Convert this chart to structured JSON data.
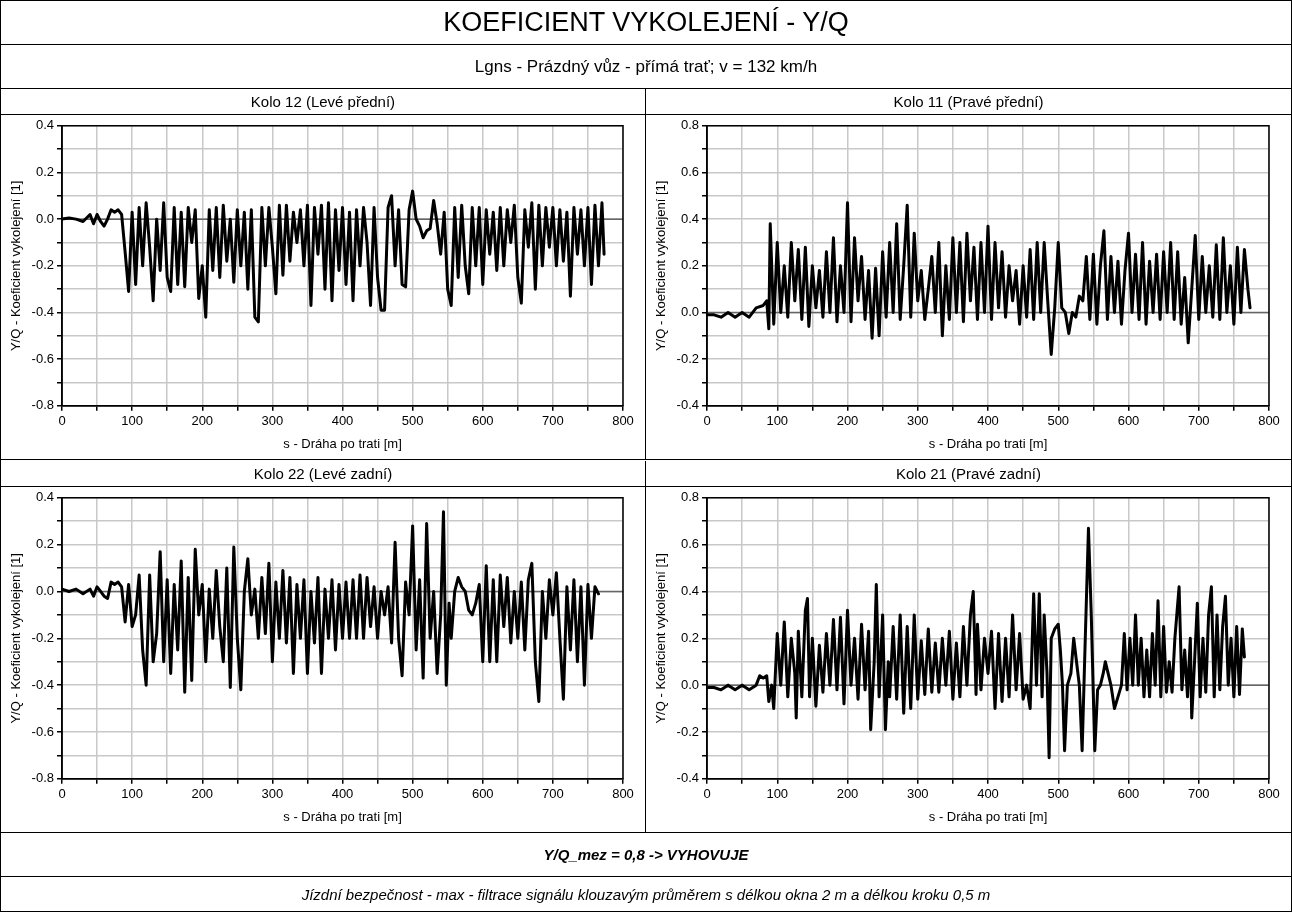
{
  "chart_data": [
    {
      "type": "other",
      "title": "KOEFICIENT VYKOLEJENÍ - Y/Q",
      "subtitle": "Lgns - Prázdný vůz - přímá trať; v = 132 km/h",
      "annotations": [
        "Y/Q_mez = 0,8 -> VYHOVUJE",
        "Jízdní bezpečnost - max - filtrace signálu klouzavým průměrem s délkou okna 2 m a délkou kroku 0,5 m"
      ]
    },
    {
      "type": "line",
      "title": "Kolo 12 (Levé přední)",
      "xlabel": "s - Dráha po trati [m]",
      "ylabel": "Y/Q - Koeficient vykolejení [1]",
      "color": "#000000",
      "marker": "none",
      "line_style": "solid",
      "grid": true,
      "x": [
        0,
        10,
        20,
        30,
        40,
        45,
        50,
        55,
        60,
        65,
        70,
        75,
        80,
        85,
        90,
        95,
        100,
        105,
        110,
        115,
        120,
        125,
        130,
        135,
        140,
        145,
        150,
        155,
        160,
        165,
        170,
        175,
        180,
        185,
        190,
        195,
        200,
        205,
        210,
        215,
        220,
        225,
        230,
        235,
        240,
        245,
        250,
        255,
        260,
        265,
        270,
        275,
        280,
        285,
        290,
        295,
        300,
        305,
        310,
        315,
        320,
        325,
        330,
        335,
        340,
        345,
        350,
        355,
        360,
        365,
        370,
        375,
        380,
        385,
        390,
        395,
        400,
        405,
        410,
        415,
        420,
        425,
        430,
        435,
        440,
        445,
        450,
        455,
        460,
        465,
        470,
        475,
        480,
        485,
        490,
        495,
        500,
        505,
        510,
        515,
        520,
        525,
        530,
        535,
        540,
        545,
        550,
        555,
        560,
        565,
        570,
        575,
        580,
        585,
        590,
        595,
        600,
        605,
        610,
        615,
        620,
        625,
        630,
        635,
        640,
        645,
        650,
        655,
        660,
        665,
        670,
        675,
        680,
        685,
        690,
        695,
        700,
        705,
        710,
        715,
        720,
        725,
        730,
        735,
        740,
        745,
        750,
        755,
        760,
        765,
        770,
        773
      ],
      "values": [
        0,
        0.005,
        0,
        -0.01,
        0.02,
        -0.02,
        0.02,
        -0.01,
        -0.03,
        0,
        0.04,
        0.03,
        0.04,
        0.02,
        -0.14,
        -0.31,
        0.03,
        -0.28,
        0.05,
        -0.2,
        0.07,
        -0.12,
        -0.35,
        0,
        -0.22,
        0.07,
        -0.25,
        -0.31,
        0.05,
        -0.28,
        0.03,
        -0.29,
        0.05,
        -0.1,
        0.04,
        -0.34,
        -0.2,
        -0.42,
        0.04,
        -0.22,
        0.05,
        -0.25,
        0.06,
        -0.18,
        0,
        -0.27,
        0.04,
        -0.2,
        0.03,
        -0.3,
        0.04,
        -0.42,
        -0.44,
        0.05,
        -0.2,
        0.05,
        -0.12,
        -0.32,
        0.06,
        -0.24,
        0.06,
        -0.18,
        0.03,
        -0.1,
        0.04,
        -0.2,
        0.06,
        -0.37,
        0.05,
        -0.15,
        0.06,
        -0.3,
        0.07,
        -0.35,
        0.04,
        -0.22,
        0.05,
        -0.28,
        0.03,
        -0.35,
        0.04,
        -0.2,
        0.05,
        -0.1,
        -0.37,
        0.05,
        -0.25,
        -0.39,
        -0.39,
        0.05,
        0.1,
        -0.2,
        0.04,
        -0.28,
        -0.29,
        0.04,
        0.12,
        0,
        -0.03,
        -0.08,
        -0.05,
        -0.04,
        0.08,
        -0.02,
        -0.15,
        0.03,
        -0.3,
        -0.37,
        0.05,
        -0.25,
        0.06,
        -0.2,
        -0.32,
        0.05,
        -0.2,
        0.05,
        -0.28,
        0.04,
        -0.15,
        0.03,
        -0.22,
        0.05,
        -0.2,
        0.04,
        -0.1,
        0.06,
        -0.25,
        -0.36,
        0.04,
        -0.12,
        0.07,
        -0.3,
        0.06,
        -0.2,
        0.05,
        -0.12,
        0.05,
        -0.2,
        0.04,
        -0.18,
        0.03,
        -0.33,
        0.05,
        -0.15,
        0.04,
        -0.2,
        0.05,
        -0.28,
        0.06,
        -0.2,
        0.07,
        -0.15
      ],
      "xlim": [
        0,
        800
      ],
      "xticks": [
        0,
        {
          "value": 50,
          "label": null
        },
        100,
        {
          "value": 150,
          "label": null
        },
        200,
        {
          "value": 250,
          "label": null
        },
        300,
        {
          "value": 350,
          "label": null
        },
        400,
        {
          "value": 450,
          "label": null
        },
        500,
        {
          "value": 550,
          "label": null
        },
        600,
        {
          "value": 650,
          "label": null
        },
        700,
        {
          "value": 750,
          "label": null
        },
        800
      ],
      "ylim": [
        -0.8,
        0.4
      ],
      "yticks": [
        -0.8,
        {
          "value": -0.7,
          "label": null
        },
        -0.6,
        {
          "value": -0.5,
          "label": null
        },
        -0.4,
        {
          "value": -0.3,
          "label": null
        },
        -0.2,
        {
          "value": -0.1,
          "label": null
        },
        {
          "value": 0,
          "label": "0.0"
        },
        {
          "value": 0.1,
          "label": null
        },
        0.2,
        {
          "value": 0.3,
          "label": null
        },
        0.4
      ],
      "ref_lines": [
        {
          "axis": "y",
          "value": 0,
          "color": "#666666"
        }
      ]
    },
    {
      "type": "line",
      "title": "Kolo 11 (Pravé přední)",
      "xlabel": "s - Dráha po trati [m]",
      "ylabel": "Y/Q - Koeficient vykolejení [1]",
      "color": "#000000",
      "marker": "none",
      "line_style": "solid",
      "grid": true,
      "x": [
        0,
        10,
        20,
        30,
        40,
        50,
        60,
        70,
        80,
        85,
        88,
        90,
        95,
        100,
        105,
        110,
        115,
        120,
        125,
        130,
        135,
        140,
        145,
        150,
        155,
        160,
        165,
        170,
        175,
        180,
        185,
        190,
        195,
        200,
        205,
        210,
        215,
        220,
        225,
        230,
        235,
        240,
        245,
        250,
        255,
        260,
        265,
        270,
        275,
        280,
        285,
        290,
        295,
        300,
        305,
        310,
        315,
        320,
        325,
        330,
        335,
        340,
        345,
        350,
        355,
        360,
        365,
        370,
        375,
        380,
        385,
        390,
        395,
        400,
        405,
        410,
        415,
        420,
        425,
        430,
        435,
        440,
        445,
        450,
        455,
        460,
        465,
        470,
        475,
        480,
        485,
        490,
        495,
        500,
        505,
        510,
        515,
        520,
        525,
        530,
        535,
        540,
        545,
        550,
        555,
        560,
        565,
        570,
        575,
        580,
        585,
        590,
        595,
        600,
        605,
        610,
        615,
        620,
        625,
        630,
        635,
        640,
        645,
        650,
        655,
        660,
        665,
        670,
        675,
        680,
        685,
        690,
        695,
        700,
        705,
        710,
        715,
        720,
        725,
        730,
        735,
        740,
        745,
        750,
        755,
        760,
        765,
        770,
        773
      ],
      "values": [
        -0.01,
        -0.01,
        -0.02,
        0,
        -0.02,
        0,
        -0.02,
        0.02,
        0.03,
        0.05,
        -0.07,
        0.38,
        -0.05,
        0.3,
        0,
        0.2,
        -0.02,
        0.3,
        0.05,
        0.27,
        -0.03,
        0.28,
        -0.06,
        0.2,
        0.02,
        0.18,
        -0.02,
        0.26,
        0,
        0.32,
        -0.04,
        0.2,
        0,
        0.47,
        -0.04,
        0.32,
        0.05,
        0.24,
        -0.03,
        0.18,
        -0.11,
        0.19,
        -0.1,
        0.26,
        -0.02,
        0.3,
        0,
        0.38,
        -0.03,
        0.2,
        0.46,
        -0.02,
        0.34,
        0.05,
        0.18,
        -0.03,
        0.1,
        0.24,
        0,
        0.3,
        -0.1,
        0.2,
        -0.03,
        0.32,
        0,
        0.3,
        -0.04,
        0.34,
        0.05,
        0.28,
        -0.03,
        0.3,
        0,
        0.37,
        -0.03,
        0.3,
        0.02,
        0.26,
        -0.02,
        0.2,
        0.05,
        0.18,
        -0.05,
        0.2,
        -0.02,
        0.27,
        -0.03,
        0.3,
        0,
        0.3,
        0.05,
        -0.18,
        0.02,
        0.3,
        0.02,
        0,
        -0.09,
        0,
        -0.02,
        0.07,
        0.05,
        0.24,
        -0.03,
        0.25,
        -0.05,
        0.2,
        0.35,
        -0.03,
        0.24,
        0,
        0.22,
        -0.05,
        0.18,
        0.34,
        0,
        0.25,
        -0.03,
        0.3,
        -0.05,
        0.22,
        0,
        0.25,
        -0.03,
        0.26,
        0,
        0.3,
        -0.03,
        0.26,
        -0.05,
        0.15,
        -0.13,
        0.1,
        0.33,
        -0.03,
        0.24,
        0,
        0.2,
        -0.02,
        0.29,
        -0.03,
        0.32,
        0,
        0.2,
        -0.05,
        0.28,
        0,
        0.27,
        0.1,
        0.02
      ],
      "xlim": [
        0,
        800
      ],
      "xticks": [
        0,
        {
          "value": 50,
          "label": null
        },
        100,
        {
          "value": 150,
          "label": null
        },
        200,
        {
          "value": 250,
          "label": null
        },
        300,
        {
          "value": 350,
          "label": null
        },
        400,
        {
          "value": 450,
          "label": null
        },
        500,
        {
          "value": 550,
          "label": null
        },
        600,
        {
          "value": 650,
          "label": null
        },
        700,
        {
          "value": 750,
          "label": null
        },
        800
      ],
      "ylim": [
        -0.4,
        0.8
      ],
      "yticks": [
        -0.4,
        {
          "value": -0.3,
          "label": null
        },
        -0.2,
        {
          "value": -0.1,
          "label": null
        },
        {
          "value": 0,
          "label": "0.0"
        },
        {
          "value": 0.1,
          "label": null
        },
        0.2,
        {
          "value": 0.3,
          "label": null
        },
        0.4,
        {
          "value": 0.5,
          "label": null
        },
        0.6,
        {
          "value": 0.7,
          "label": null
        },
        0.8
      ],
      "ref_lines": [
        {
          "axis": "y",
          "value": 0,
          "color": "#666666"
        }
      ]
    },
    {
      "type": "line",
      "title": "Kolo 22 (Levé zadní)",
      "xlabel": "s - Dráha po trati [m]",
      "ylabel": "Y/Q - Koeficient vykolejení [1]",
      "color": "#000000",
      "marker": "none",
      "line_style": "solid",
      "grid": true,
      "x": [
        0,
        10,
        20,
        30,
        40,
        45,
        50,
        55,
        60,
        65,
        70,
        75,
        80,
        85,
        90,
        95,
        100,
        105,
        110,
        115,
        120,
        125,
        130,
        135,
        140,
        145,
        150,
        155,
        160,
        165,
        170,
        175,
        180,
        185,
        190,
        195,
        200,
        205,
        210,
        215,
        220,
        225,
        230,
        235,
        240,
        245,
        250,
        255,
        260,
        265,
        270,
        275,
        280,
        285,
        290,
        295,
        300,
        305,
        310,
        315,
        320,
        325,
        330,
        335,
        340,
        345,
        350,
        355,
        360,
        365,
        370,
        375,
        380,
        385,
        390,
        395,
        400,
        405,
        410,
        415,
        420,
        425,
        430,
        435,
        440,
        445,
        450,
        455,
        460,
        465,
        470,
        475,
        480,
        485,
        490,
        495,
        500,
        505,
        510,
        515,
        520,
        525,
        530,
        535,
        540,
        544,
        548,
        552,
        555,
        560,
        565,
        570,
        575,
        580,
        585,
        590,
        595,
        600,
        605,
        610,
        615,
        620,
        625,
        630,
        635,
        640,
        645,
        650,
        655,
        660,
        665,
        670,
        675,
        680,
        685,
        690,
        695,
        700,
        705,
        710,
        715,
        720,
        725,
        730,
        735,
        740,
        745,
        750,
        755,
        760,
        765
      ],
      "values": [
        0.01,
        0,
        0.01,
        -0.01,
        0.01,
        -0.02,
        0.02,
        0,
        -0.02,
        -0.03,
        0.04,
        0.03,
        0.04,
        0.02,
        -0.13,
        0.03,
        -0.15,
        -0.1,
        0.07,
        -0.25,
        -0.4,
        0.07,
        -0.3,
        -0.18,
        0.17,
        -0.3,
        0.05,
        -0.35,
        0.03,
        -0.25,
        0.13,
        -0.43,
        0.06,
        -0.38,
        0.18,
        -0.1,
        0.03,
        -0.3,
        0.01,
        -0.2,
        0.09,
        -0.15,
        -0.3,
        0.1,
        -0.41,
        0.19,
        -0.2,
        -0.42,
        0,
        0.14,
        -0.1,
        0.01,
        -0.2,
        0.06,
        -0.18,
        0.12,
        -0.3,
        0.04,
        -0.2,
        0.09,
        -0.22,
        0.06,
        -0.35,
        0.03,
        -0.2,
        0.05,
        -0.35,
        0,
        -0.22,
        0.06,
        -0.35,
        0.01,
        -0.2,
        0.05,
        -0.25,
        0.03,
        -0.2,
        0.04,
        -0.2,
        0.05,
        -0.2,
        0.07,
        -0.2,
        0.06,
        -0.15,
        0.02,
        -0.2,
        0,
        -0.1,
        0.02,
        -0.22,
        0.21,
        -0.2,
        -0.36,
        0.04,
        -0.1,
        0.28,
        -0.25,
        0.05,
        -0.37,
        0.29,
        -0.2,
        0,
        -0.35,
        -0.1,
        0.34,
        -0.4,
        -0.05,
        -0.2,
        0,
        0.06,
        0.02,
        0,
        -0.08,
        -0.1,
        -0.05,
        0.03,
        -0.3,
        0.11,
        -0.3,
        0.05,
        -0.3,
        0.07,
        -0.15,
        0.06,
        -0.22,
        0,
        -0.2,
        0.04,
        -0.25,
        0.05,
        0.12,
        -0.3,
        -0.47,
        0,
        -0.2,
        0.05,
        -0.1,
        0.08,
        -0.2,
        -0.46,
        0.02,
        -0.25,
        0.05,
        -0.3,
        0.02,
        -0.4,
        0.03,
        -0.2,
        0.02,
        -0.01
      ],
      "xlim": [
        0,
        800
      ],
      "xticks": [
        0,
        {
          "value": 50,
          "label": null
        },
        100,
        {
          "value": 150,
          "label": null
        },
        200,
        {
          "value": 250,
          "label": null
        },
        300,
        {
          "value": 350,
          "label": null
        },
        400,
        {
          "value": 450,
          "label": null
        },
        500,
        {
          "value": 550,
          "label": null
        },
        600,
        {
          "value": 650,
          "label": null
        },
        700,
        {
          "value": 750,
          "label": null
        },
        800
      ],
      "ylim": [
        -0.8,
        0.4
      ],
      "yticks": [
        -0.8,
        {
          "value": -0.7,
          "label": null
        },
        -0.6,
        {
          "value": -0.5,
          "label": null
        },
        -0.4,
        {
          "value": -0.3,
          "label": null
        },
        -0.2,
        {
          "value": -0.1,
          "label": null
        },
        {
          "value": 0,
          "label": "0.0"
        },
        {
          "value": 0.1,
          "label": null
        },
        0.2,
        {
          "value": 0.3,
          "label": null
        },
        0.4
      ],
      "ref_lines": [
        {
          "axis": "y",
          "value": 0,
          "color": "#666666"
        }
      ]
    },
    {
      "type": "line",
      "title": "Kolo 21 (Pravé zadní)",
      "xlabel": "s - Dráha po trati [m]",
      "ylabel": "Y/Q - Koeficient vykolejení [1]",
      "color": "#000000",
      "marker": "none",
      "line_style": "solid",
      "grid": true,
      "x": [
        0,
        10,
        20,
        30,
        40,
        50,
        60,
        70,
        75,
        80,
        85,
        88,
        92,
        95,
        100,
        105,
        110,
        115,
        120,
        125,
        127,
        130,
        135,
        140,
        143,
        146,
        150,
        155,
        160,
        165,
        170,
        175,
        180,
        185,
        190,
        195,
        200,
        205,
        210,
        215,
        220,
        225,
        230,
        233,
        238,
        241,
        245,
        250,
        254,
        258,
        260,
        265,
        270,
        275,
        280,
        285,
        290,
        295,
        300,
        305,
        310,
        315,
        320,
        325,
        330,
        335,
        340,
        345,
        350,
        355,
        360,
        365,
        370,
        375,
        379,
        383,
        385,
        390,
        395,
        400,
        405,
        410,
        415,
        420,
        425,
        430,
        435,
        440,
        445,
        450,
        455,
        460,
        465,
        469,
        473,
        477,
        480,
        484,
        487,
        490,
        495,
        500,
        503,
        506,
        509,
        513,
        518,
        522,
        526,
        530,
        534,
        538,
        543,
        547,
        552,
        556,
        560,
        564,
        567,
        571,
        575,
        580,
        585,
        590,
        594,
        598,
        602,
        606,
        610,
        614,
        618,
        622,
        626,
        630,
        634,
        638,
        642,
        646,
        650,
        654,
        658,
        662,
        666,
        672,
        676,
        680,
        684,
        688,
        690,
        694,
        698,
        702,
        706,
        710,
        714,
        718,
        722,
        726,
        730,
        734,
        738,
        742,
        746,
        750,
        754,
        758,
        762,
        765
      ],
      "values": [
        -0.01,
        -0.01,
        -0.02,
        0,
        -0.02,
        0,
        -0.02,
        0,
        0.04,
        0.03,
        0.04,
        -0.07,
        0,
        -0.1,
        0.22,
        0,
        0.27,
        -0.05,
        0.2,
        0.05,
        -0.14,
        0.23,
        -0.05,
        0.32,
        0.37,
        -0.05,
        0.2,
        -0.09,
        0.17,
        -0.03,
        0.22,
        0,
        0.28,
        -0.02,
        0.29,
        -0.08,
        0.32,
        0,
        0.2,
        -0.06,
        0.26,
        -0.02,
        0.23,
        -0.19,
        0.1,
        0.43,
        -0.05,
        0.3,
        -0.19,
        0.1,
        -0.05,
        0.25,
        -0.06,
        0.3,
        -0.12,
        0.25,
        -0.1,
        0.3,
        -0.06,
        0.19,
        -0.04,
        0.24,
        -0.03,
        0.18,
        -0.03,
        0.2,
        0,
        0.23,
        -0.06,
        0.18,
        -0.05,
        0.25,
        0,
        0.3,
        0.4,
        -0.04,
        0.26,
        -0.02,
        0.2,
        0.05,
        0.23,
        -0.1,
        0.22,
        -0.07,
        0.2,
        -0.05,
        0.3,
        -0.02,
        0.22,
        -0.06,
        0,
        -0.1,
        0.39,
        0,
        0.39,
        -0.05,
        0.3,
        0.05,
        -0.31,
        0.2,
        0.24,
        0.26,
        0.15,
        0,
        -0.28,
        0,
        0.05,
        0.2,
        0.1,
        0,
        -0.28,
        0.15,
        0.67,
        0.3,
        -0.28,
        -0.02,
        0,
        0.05,
        0.1,
        0.05,
        0,
        -0.1,
        -0.05,
        0,
        0.22,
        -0.02,
        0.2,
        0,
        0.3,
        0,
        0.2,
        -0.05,
        0.15,
        -0.05,
        0.22,
        0,
        0.36,
        -0.05,
        0.25,
        -0.03,
        0.1,
        -0.03,
        0.2,
        0.42,
        -0.02,
        0.15,
        -0.05,
        0.2,
        -0.14,
        0.1,
        0.35,
        -0.05,
        0.2,
        -0.03,
        0.3,
        0.42,
        -0.05,
        0.3,
        -0.02,
        0.25,
        0.38,
        0,
        0.2,
        -0.05,
        0.25,
        -0.04,
        0.24,
        0.12
      ],
      "xlim": [
        0,
        800
      ],
      "xticks": [
        0,
        {
          "value": 50,
          "label": null
        },
        100,
        {
          "value": 150,
          "label": null
        },
        200,
        {
          "value": 250,
          "label": null
        },
        300,
        {
          "value": 350,
          "label": null
        },
        400,
        {
          "value": 450,
          "label": null
        },
        500,
        {
          "value": 550,
          "label": null
        },
        600,
        {
          "value": 650,
          "label": null
        },
        700,
        {
          "value": 750,
          "label": null
        },
        800
      ],
      "ylim": [
        -0.4,
        0.8
      ],
      "yticks": [
        -0.4,
        {
          "value": -0.3,
          "label": null
        },
        -0.2,
        {
          "value": -0.1,
          "label": null
        },
        {
          "value": 0,
          "label": "0.0"
        },
        {
          "value": 0.1,
          "label": null
        },
        0.2,
        {
          "value": 0.3,
          "label": null
        },
        0.4,
        {
          "value": 0.5,
          "label": null
        },
        0.6,
        {
          "value": 0.7,
          "label": null
        },
        0.8
      ],
      "ref_lines": [
        {
          "axis": "y",
          "value": 0,
          "color": "#666666"
        }
      ]
    }
  ]
}
